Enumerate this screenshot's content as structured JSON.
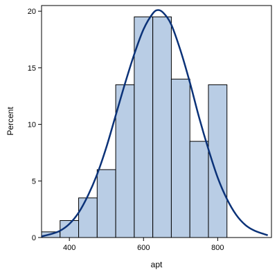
{
  "chart_data": {
    "type": "bar",
    "subtype": "histogram-with-normal-curve",
    "xlabel": "apt",
    "ylabel": "Percent",
    "xlim": [
      325,
      945
    ],
    "ylim": [
      0,
      20.5
    ],
    "x_ticks": [
      400,
      600,
      800
    ],
    "y_ticks": [
      0,
      5,
      10,
      15,
      20
    ],
    "bin_width": 50,
    "bins": [
      {
        "center": 350,
        "value": 0.5
      },
      {
        "center": 400,
        "value": 1.5
      },
      {
        "center": 450,
        "value": 3.5
      },
      {
        "center": 500,
        "value": 6.0
      },
      {
        "center": 550,
        "value": 13.5
      },
      {
        "center": 600,
        "value": 19.5
      },
      {
        "center": 650,
        "value": 19.5
      },
      {
        "center": 700,
        "value": 14.0
      },
      {
        "center": 750,
        "value": 8.5
      },
      {
        "center": 800,
        "value": 13.5
      }
    ],
    "curve": {
      "kind": "normal",
      "x": [
        325,
        350,
        375,
        400,
        425,
        450,
        475,
        500,
        525,
        550,
        575,
        600,
        625,
        640,
        655,
        675,
        700,
        725,
        750,
        775,
        800,
        825,
        850,
        875,
        900,
        935
      ],
      "y": [
        0.1,
        0.3,
        0.6,
        1.2,
        2.2,
        3.7,
        5.6,
        8.0,
        10.8,
        13.6,
        16.2,
        18.4,
        19.8,
        20.1,
        19.8,
        18.8,
        16.5,
        13.7,
        10.6,
        7.8,
        5.3,
        3.4,
        2.0,
        1.1,
        0.6,
        0.2
      ]
    },
    "colors": {
      "bar_fill": "#b9cde5",
      "bar_stroke": "#000000",
      "curve": "#0b3278"
    },
    "grid": false
  }
}
